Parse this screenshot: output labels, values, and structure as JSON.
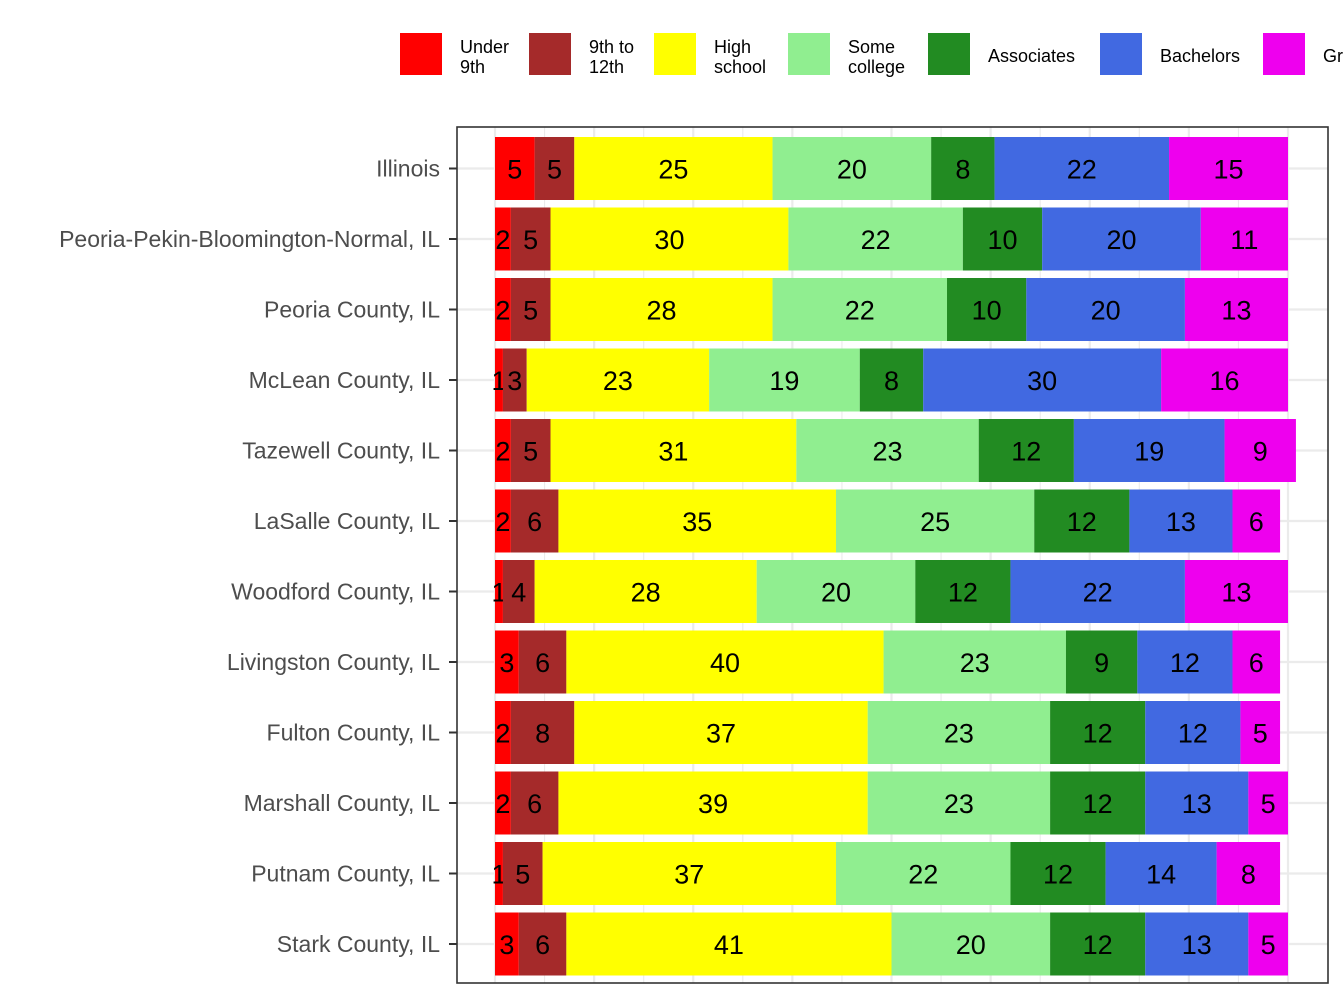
{
  "chart_data": {
    "type": "bar",
    "orientation": "horizontal",
    "stacked": true,
    "title": "",
    "xlabel": "",
    "ylabel": "",
    "xlim": [
      0,
      100
    ],
    "grid": true,
    "legend_position": "top",
    "categories": [
      "Illinois",
      "Peoria-Pekin-Bloomington-Normal, IL",
      "Peoria County, IL",
      "McLean County, IL",
      "Tazewell County, IL",
      "LaSalle County, IL",
      "Woodford County, IL",
      "Livingston County, IL",
      "Fulton County, IL",
      "Marshall County, IL",
      "Putnam County, IL",
      "Stark County, IL"
    ],
    "series": [
      {
        "name": "Under 9th",
        "legend_lines": [
          "Under",
          "9th"
        ],
        "color": "#ff0000",
        "values": [
          5,
          2,
          2,
          1,
          2,
          2,
          1,
          3,
          2,
          2,
          1,
          3
        ],
        "labels": [
          "5",
          "2",
          "2",
          "1",
          "2",
          "2",
          "1",
          "3",
          "2",
          "2",
          "1",
          "3"
        ]
      },
      {
        "name": "9th to 12th",
        "legend_lines": [
          "9th to",
          "12th"
        ],
        "color": "#a52a2a",
        "values": [
          5,
          5,
          5,
          3,
          5,
          6,
          4,
          6,
          8,
          6,
          5,
          6
        ],
        "labels": [
          "5",
          "5",
          "5",
          "3",
          "5",
          "6",
          "4",
          "6",
          "8",
          "6",
          "5",
          "6"
        ]
      },
      {
        "name": "High school",
        "legend_lines": [
          "High",
          "school"
        ],
        "color": "#ffff00",
        "values": [
          25,
          30,
          28,
          23,
          31,
          35,
          28,
          40,
          37,
          39,
          37,
          41
        ],
        "labels": [
          "25",
          "30",
          "28",
          "23",
          "31",
          "35",
          "28",
          "40",
          "37",
          "39",
          "37",
          "41"
        ]
      },
      {
        "name": "Some college",
        "legend_lines": [
          "Some",
          "college"
        ],
        "color": "#90ee90",
        "values": [
          20,
          22,
          22,
          19,
          23,
          25,
          20,
          23,
          23,
          23,
          22,
          20
        ],
        "labels": [
          "20",
          "22",
          "22",
          "19",
          "23",
          "25",
          "20",
          "23",
          "23",
          "23",
          "22",
          "20"
        ]
      },
      {
        "name": "Associates",
        "legend_lines": [
          "Associates"
        ],
        "color": "#228b22",
        "values": [
          8,
          10,
          10,
          8,
          12,
          12,
          12,
          9,
          12,
          12,
          12,
          12
        ],
        "labels": [
          "8",
          "10",
          "10",
          "8",
          "12",
          "12",
          "12",
          "9",
          "12",
          "12",
          "12",
          "12"
        ]
      },
      {
        "name": "Bachelors",
        "legend_lines": [
          "Bachelors"
        ],
        "color": "#4169e1",
        "values": [
          22,
          20,
          20,
          30,
          19,
          13,
          22,
          12,
          12,
          13,
          14,
          13
        ],
        "labels": [
          "22",
          "20",
          "20",
          "30",
          "19",
          "13",
          "22",
          "12",
          "12",
          "13",
          "14",
          "13"
        ]
      },
      {
        "name": "Gr",
        "legend_lines": [
          "Gr"
        ],
        "color": "#ee00ee",
        "values": [
          15,
          11,
          13,
          16,
          9,
          6,
          13,
          6,
          5,
          5,
          8,
          5
        ],
        "labels": [
          "15",
          "11",
          "13",
          "16",
          "9",
          "6",
          "13",
          "6",
          "5",
          "5",
          "8",
          "5"
        ]
      }
    ]
  }
}
